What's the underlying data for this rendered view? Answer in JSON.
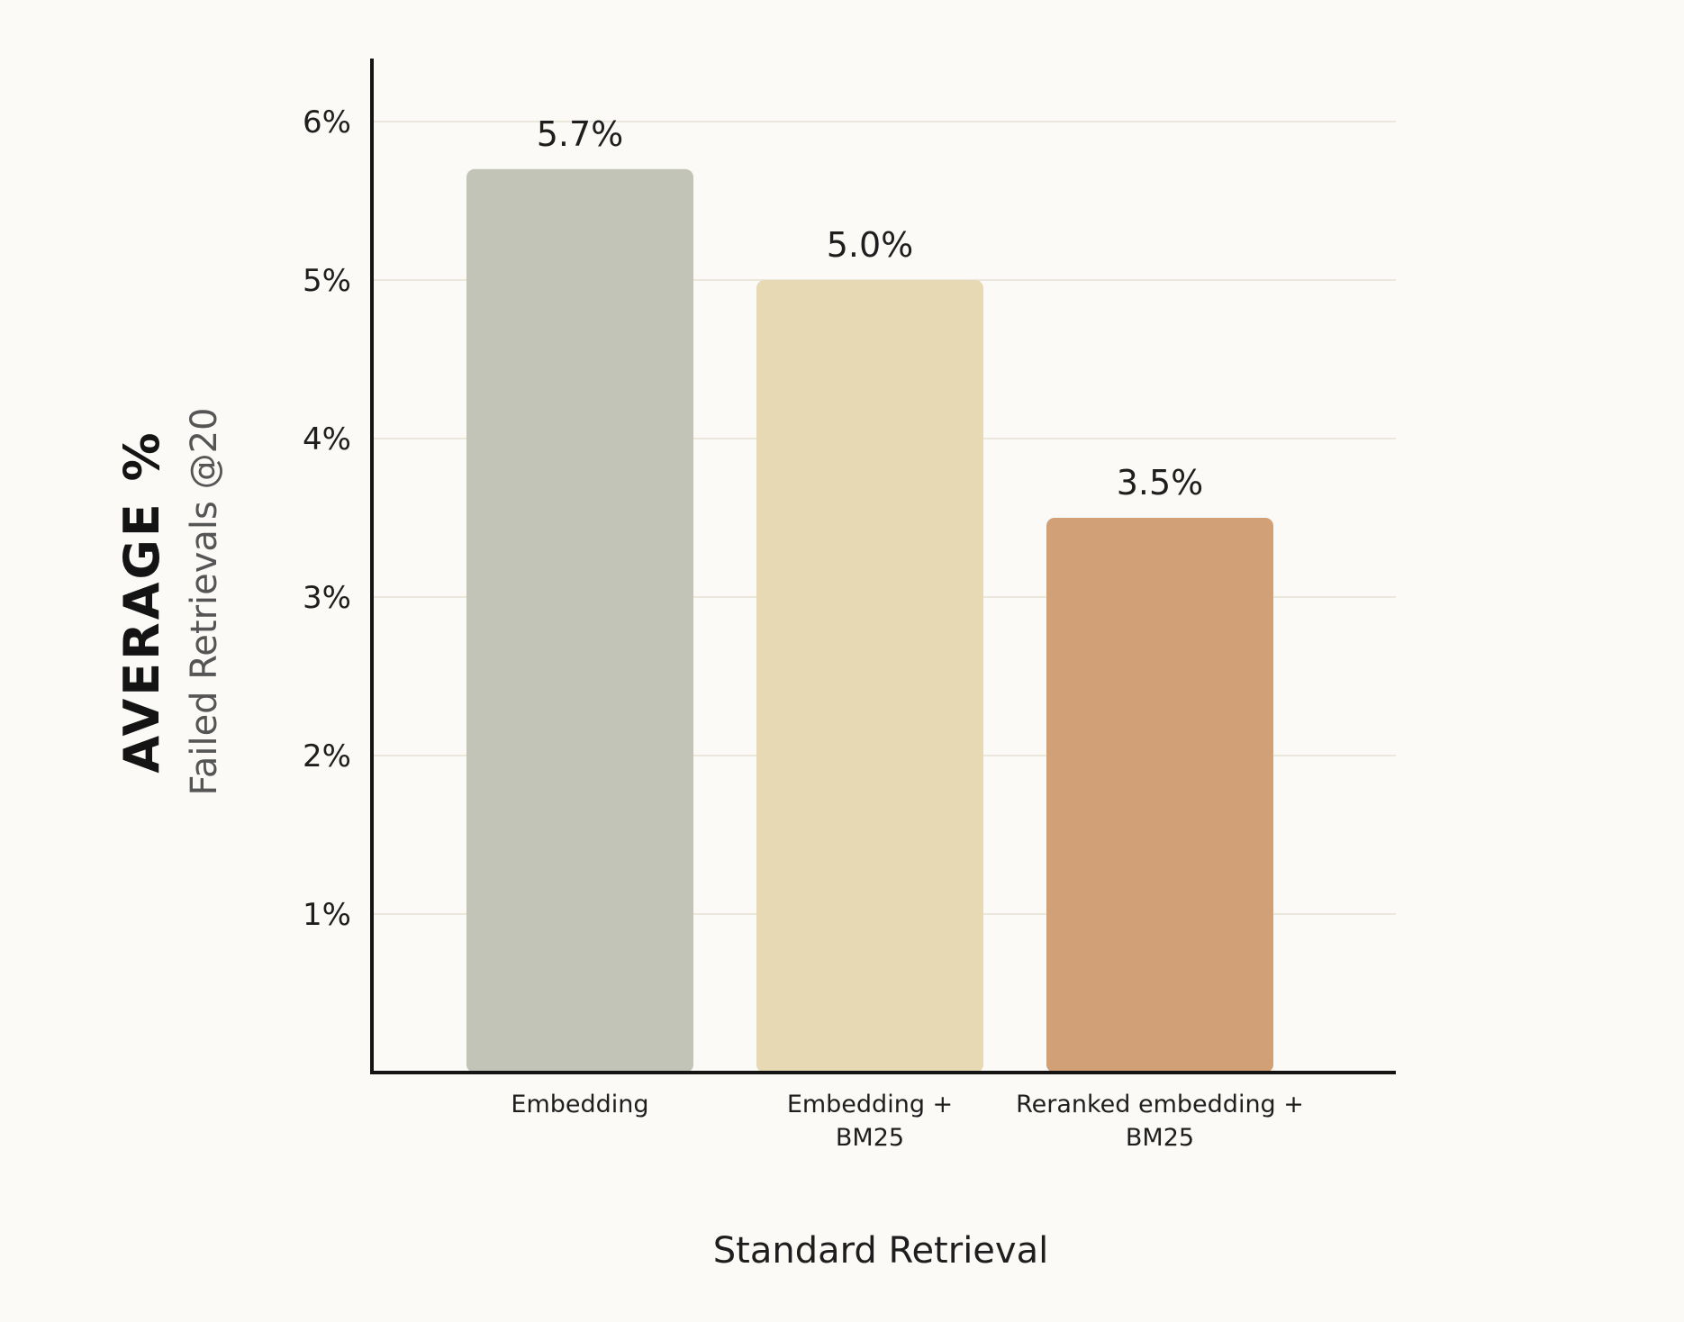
{
  "chart_data": {
    "type": "bar",
    "categories": [
      [
        "Embedding"
      ],
      [
        "Embedding +",
        "BM25"
      ],
      [
        "Reranked embedding +",
        "BM25"
      ]
    ],
    "values": [
      5.7,
      5.0,
      3.5
    ],
    "value_labels": [
      "5.7%",
      "5.0%",
      "3.5%"
    ],
    "bar_colors": [
      "#c1c4b6",
      "#e8d9b5",
      "#d1a077"
    ],
    "ylim": [
      0,
      6.4
    ],
    "yticks": [
      1,
      2,
      3,
      4,
      5,
      6
    ],
    "ytick_labels": [
      "1%",
      "2%",
      "3%",
      "4%",
      "5%",
      "6%"
    ],
    "ylabel": "AVERAGE %",
    "ylabel_sub": "Failed Retrievals @20",
    "xlabel": "Standard Retrieval",
    "grid": true,
    "colors": {
      "background": "#fbfaf7",
      "gridline": "#ebe7dd",
      "axis": "#141414"
    }
  }
}
